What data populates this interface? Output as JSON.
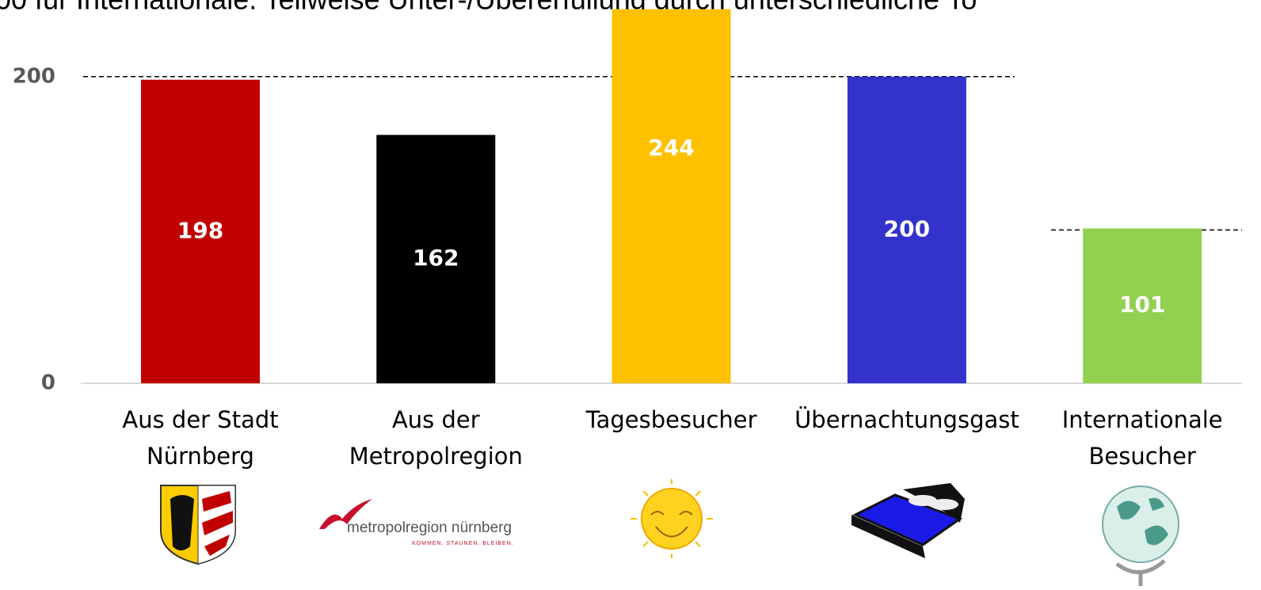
{
  "chart_data": {
    "type": "bar",
    "subtitle": "00 für Internationale. Teilweise Unter-/Übererfüllung durch unterschiedliche To",
    "categories": [
      [
        "Aus der Stadt",
        "Nürnberg"
      ],
      [
        "Aus der",
        "Metropolregion"
      ],
      [
        "Tagesbesucher"
      ],
      [
        "Übernachtungsgast"
      ],
      [
        "Internationale",
        "Besucher"
      ]
    ],
    "values": [
      198,
      162,
      244,
      200,
      101
    ],
    "colors": [
      "#c00000",
      "#000000",
      "#ffc000",
      "#3333cc",
      "#92d050"
    ],
    "targets": [
      200,
      200,
      200,
      200,
      100
    ],
    "ylim": [
      0,
      250
    ],
    "yticks": [
      0,
      200
    ],
    "logo": {
      "name": "metropolregion nürnberg",
      "slogan": "KOMMEN. STAUNEN. BLEIBEN."
    }
  }
}
